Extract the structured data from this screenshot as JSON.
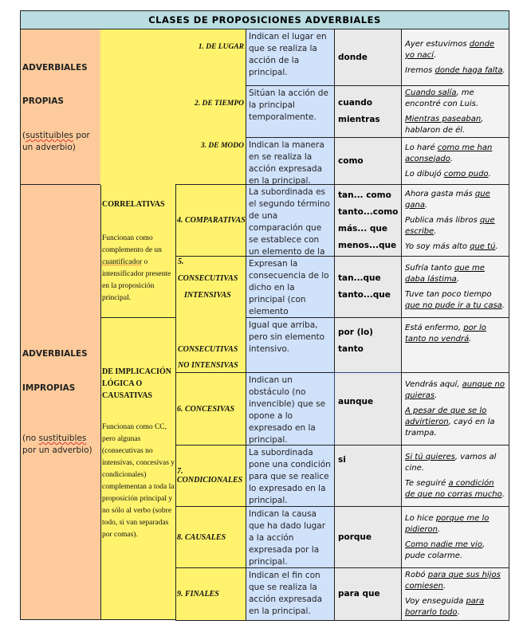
{
  "title": "CLASES DE PROPOSICIONES ADVERBIALES",
  "groups": {
    "propias": {
      "line1": "ADVERBIALES",
      "line2": "PROPIAS",
      "note_pre": "(",
      "note_word": "sustituibles",
      "note_post": " por un adverbio)"
    },
    "impropias": {
      "line1": "ADVERBIALES",
      "line2": "IMPROPIAS",
      "note_pre": "(no ",
      "note_word": "sustituibles",
      "note_post": " por un adverbio)"
    }
  },
  "subgroups": {
    "correlativas": {
      "title": "CORRELATIVAS",
      "text_pre": "Funcionan como complemento de un ",
      "text_word": "cuantificador",
      "text_post": " o intensificador presente en la proposición principal."
    },
    "implicacion": {
      "title": "DE IMPLICACIÓN LÓGICA O CAUSATIVAS",
      "text": "Funcionan como CC, pero algunas (consecutivas no intensivas, concesivas y condicionales) complementan  a toda la proposición principal y no sólo al verbo (sobre todo, si van separadas por comas)."
    }
  },
  "consecutivas_labels": {
    "num": "5.",
    "int1": "CONSECUTIVAS",
    "int2": "INTENSIVAS",
    "noint1": "CONSECUTIVAS",
    "noint2": "NO INTENSIVAS"
  },
  "rows": [
    {
      "label": "1. DE LUGAR",
      "desc": "Indican el lugar en que se realiza la acción de la principal.",
      "conj": [
        "donde"
      ],
      "examples": [
        [
          {
            "t": "Ayer estuvimos ",
            "u": false
          },
          {
            "t": "donde yo nací",
            "u": true
          },
          {
            "t": ".",
            "u": false
          }
        ],
        [
          {
            "t": "Iremos ",
            "u": false
          },
          {
            "t": "donde haga falta",
            "u": true
          },
          {
            "t": ".",
            "u": false
          }
        ]
      ]
    },
    {
      "label": "2. DE TIEMPO",
      "desc": "Sitúan la acción de la principal temporalmente.",
      "conj": [
        "cuando",
        "mientras"
      ],
      "examples": [
        [
          {
            "t": "Cuando salía",
            "u": true
          },
          {
            "t": ", me encontré con Luis.",
            "u": false
          }
        ],
        [
          {
            "t": "Mientras paseaban",
            "u": true
          },
          {
            "t": ", hablaron de él.",
            "u": false
          }
        ]
      ]
    },
    {
      "label": "3. DE MODO",
      "desc": "Indican la manera en se realiza la acción expresada en la principal.",
      "conj": [
        "como"
      ],
      "examples": [
        [
          {
            "t": "Lo haré ",
            "u": false
          },
          {
            "t": "como me han aconsejado",
            "u": true
          },
          {
            "t": ".",
            "u": false
          }
        ],
        [
          {
            "t": "Lo dibujó ",
            "u": false
          },
          {
            "t": "como pudo",
            "u": true
          },
          {
            "t": ".",
            "u": false
          }
        ]
      ]
    },
    {
      "label": "4. COMPARATIVAS",
      "desc": "La subordinada  es el segundo término de una comparación que se establece con un elemento de la principal.",
      "conj": [
        "tan... como",
        "tanto...como",
        "más... que",
        "menos...que"
      ],
      "examples": [
        [
          {
            "t": "Ahora gasta más ",
            "u": false
          },
          {
            "t": "que gana",
            "u": true
          },
          {
            "t": ".",
            "u": false
          }
        ],
        [
          {
            "t": "Publica más libros ",
            "u": false
          },
          {
            "t": "que escribe",
            "u": true
          },
          {
            "t": ".",
            "u": false
          }
        ],
        [
          {
            "t": "Yo soy más alto ",
            "u": false
          },
          {
            "t": "que tú",
            "u": true
          },
          {
            "t": ".",
            "u": false
          }
        ]
      ]
    },
    {
      "label": "",
      "desc": "Expresan la consecuencia de lo dicho en la principal (con elemento intensivo).",
      "conj": [
        "tan...que",
        "tanto...que"
      ],
      "examples": [
        [
          {
            "t": "Sufría tanto ",
            "u": false
          },
          {
            "t": "que me daba lástima",
            "u": true
          },
          {
            "t": ".",
            "u": false
          }
        ],
        [
          {
            "t": "Tuve tan poco tiempo ",
            "u": false
          },
          {
            "t": "que no pude  ir a tu casa",
            "u": true
          },
          {
            "t": ".",
            "u": false
          }
        ]
      ]
    },
    {
      "label": "",
      "desc": "Igual que arriba, pero sin elemento intensivo.",
      "conj": [
        "por (lo) tanto"
      ],
      "examples": [
        [
          {
            "t": "Está enfermo, ",
            "u": false
          },
          {
            "t": "por lo tanto no vendrá",
            "u": true
          },
          {
            "t": ".",
            "u": false
          }
        ]
      ]
    },
    {
      "label": "6. CONCESIVAS",
      "desc": "Indican un obstáculo (no invencible) que se opone a lo expresado en la principal.",
      "conj": [
        "aunque"
      ],
      "examples": [
        [
          {
            "t": "Vendrás aquí, ",
            "u": false
          },
          {
            "t": "aunque no quieras",
            "u": true
          },
          {
            "t": ".",
            "u": false
          }
        ],
        [
          {
            "t": "A pesar de que se lo advirtieron",
            "u": true
          },
          {
            "t": ", cayó en la trampa.",
            "u": false
          }
        ]
      ]
    },
    {
      "label": "7. CONDICIONALES",
      "desc": "La subordinada pone una condición para que se realice lo expresado en la principal.",
      "conj": [
        "si"
      ],
      "examples": [
        [
          {
            "t": "Si tú quieres",
            "u": true
          },
          {
            "t": ", vamos al cine.",
            "u": false
          }
        ],
        [
          {
            "t": "Te seguiré ",
            "u": false
          },
          {
            "t": "a condición de que no corras mucho",
            "u": true
          },
          {
            "t": ".",
            "u": false
          }
        ]
      ]
    },
    {
      "label": "8. CAUSALES",
      "desc": "Indican la causa que ha dado lugar a la acción expresada por la principal.",
      "conj": [
        "porque"
      ],
      "examples": [
        [
          {
            "t": "Lo hice ",
            "u": false
          },
          {
            "t": "porque me lo pidieron",
            "u": true
          },
          {
            "t": ".",
            "u": false
          }
        ],
        [
          {
            "t": "Como nadie me vio",
            "u": true
          },
          {
            "t": ", pude colarme.",
            "u": false
          }
        ]
      ]
    },
    {
      "label": "9. FINALES",
      "desc": "Indican el fin con que se realiza la acción expresada en la principal.",
      "conj": [
        "para que"
      ],
      "examples": [
        [
          {
            "t": "Robó ",
            "u": false
          },
          {
            "t": "para que sus hijos comiesen",
            "u": true
          },
          {
            "t": ".",
            "u": false
          }
        ],
        [
          {
            "t": "Voy enseguida ",
            "u": false
          },
          {
            "t": "para borrarlo todo",
            "u": true
          },
          {
            "t": ".",
            "u": false
          }
        ]
      ]
    }
  ],
  "colors": {
    "title_bg": "#b9dde1",
    "group_bg": "#fdcb9b",
    "label_bg": "#fff36e",
    "desc_bg": "#d0e1fa",
    "conj_bg": "#e9e9e9",
    "example_bg": "#f3f3f3"
  }
}
